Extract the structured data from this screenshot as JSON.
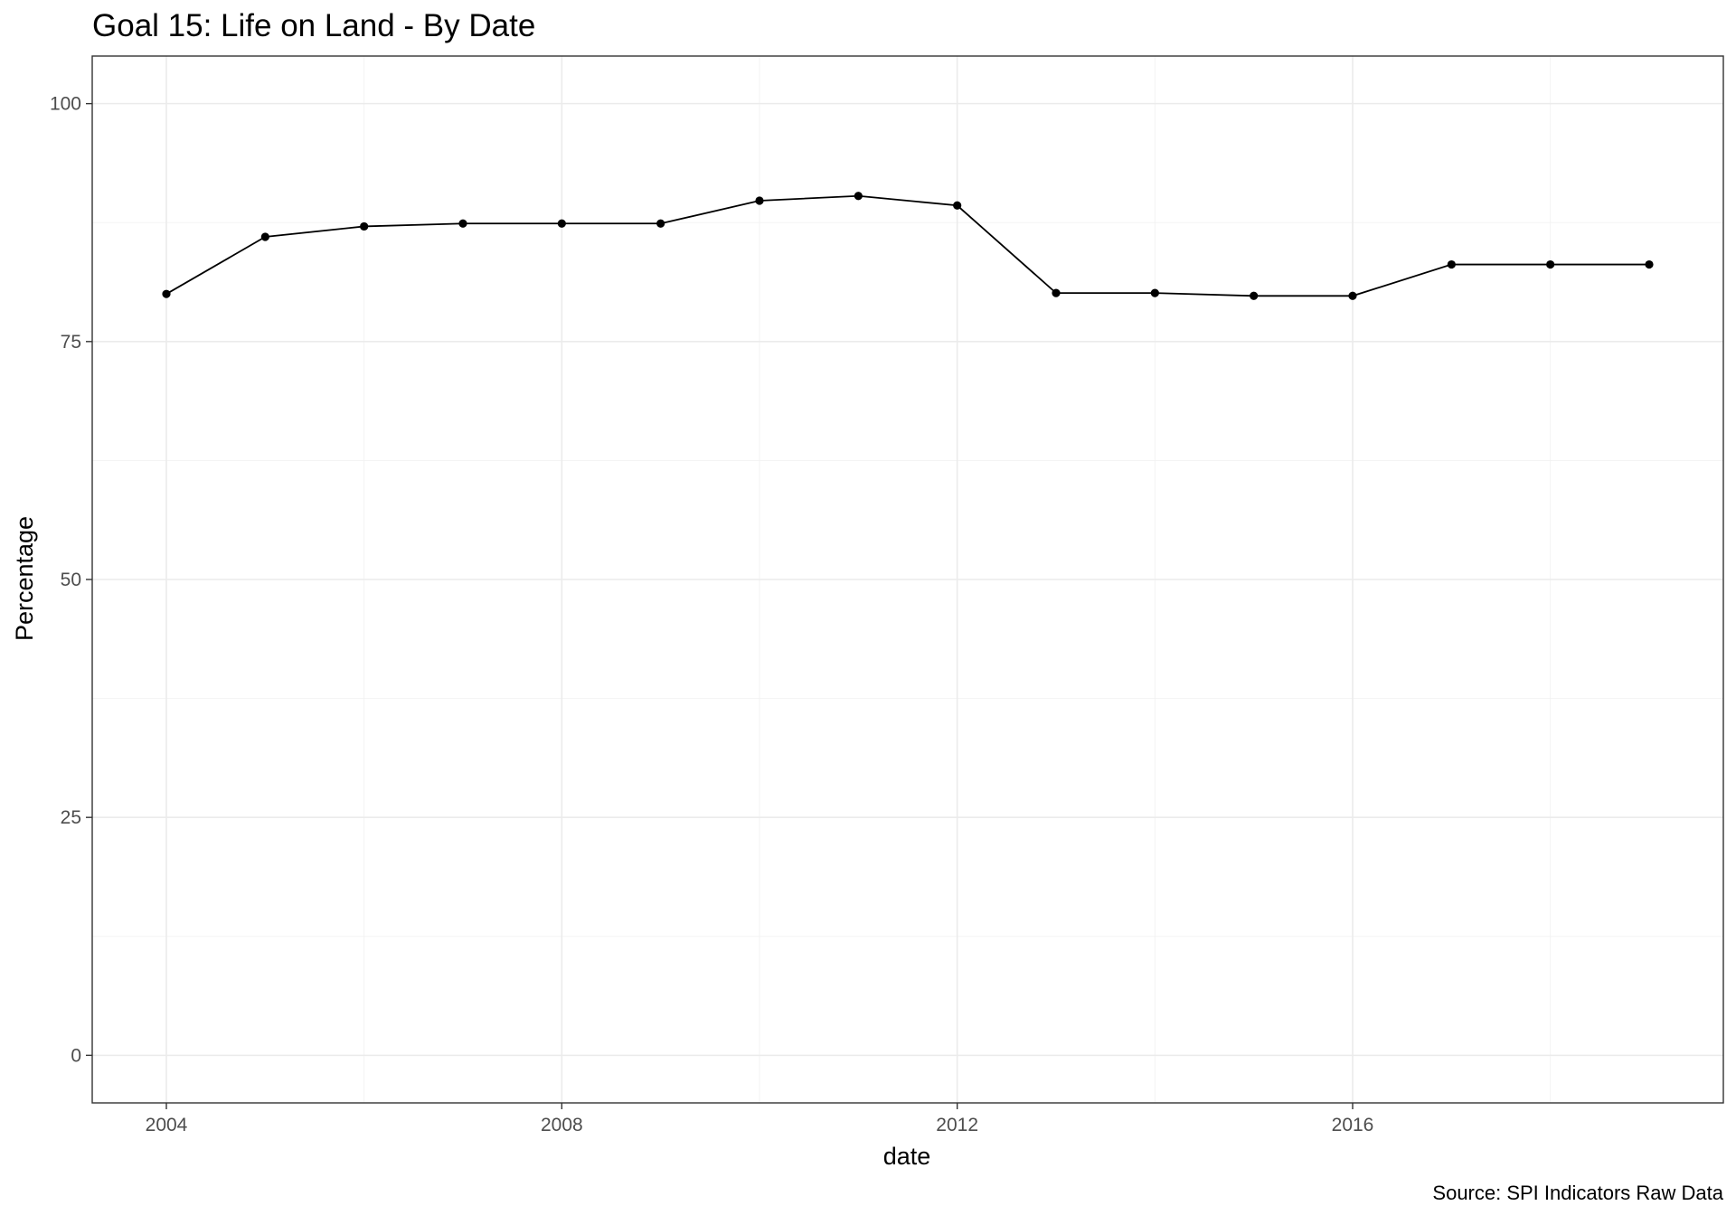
{
  "chart_data": {
    "type": "line",
    "title": "Goal 15: Life on Land - By Date",
    "xlabel": "date",
    "ylabel": "Percentage",
    "caption": "Source: SPI Indicators Raw Data",
    "xlim": [
      2003.25,
      2019.75
    ],
    "ylim": [
      -5,
      105
    ],
    "x_ticks": [
      2004,
      2008,
      2012,
      2016
    ],
    "x_tick_labels": [
      "2004",
      "2008",
      "2012",
      "2016"
    ],
    "y_ticks": [
      0,
      25,
      50,
      75,
      100
    ],
    "y_tick_labels": [
      "0",
      "25",
      "50",
      "75",
      "100"
    ],
    "grid": true,
    "legend": "none",
    "series": [
      {
        "color": "#000000",
        "x": [
          2004,
          2005,
          2006,
          2007,
          2008,
          2009,
          2010,
          2011,
          2012,
          2013,
          2014,
          2015,
          2016,
          2017,
          2018,
          2019
        ],
        "y": [
          80.0,
          86.0,
          87.1,
          87.4,
          87.4,
          87.4,
          89.8,
          90.3,
          89.3,
          80.1,
          80.1,
          79.8,
          79.8,
          83.1,
          83.1,
          83.1
        ]
      }
    ]
  }
}
